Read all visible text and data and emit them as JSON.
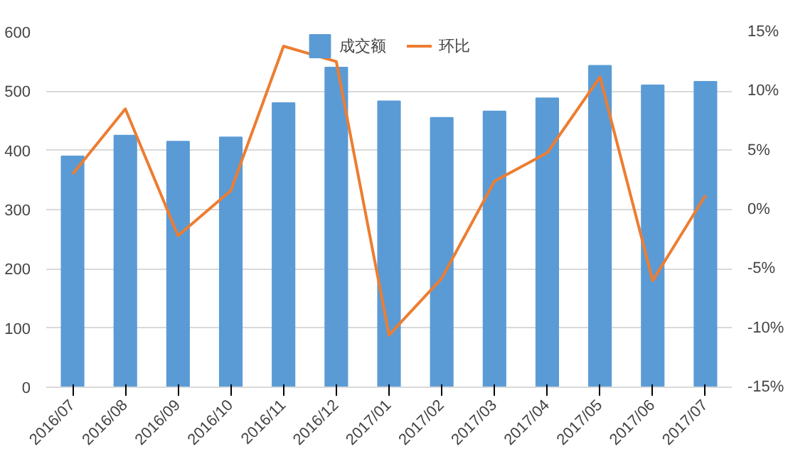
{
  "chart_data": {
    "type": "bar",
    "categories": [
      "2016/07",
      "2016/08",
      "2016/09",
      "2016/10",
      "2016/11",
      "2016/12",
      "2017/01",
      "2017/02",
      "2017/03",
      "2017/04",
      "2017/05",
      "2017/06",
      "2017/07"
    ],
    "series": [
      {
        "name": "成交额",
        "color": "#5b9bd5",
        "values": [
          390,
          425,
          415,
          422,
          480,
          540,
          483,
          455,
          466,
          488,
          543,
          510,
          516
        ]
      },
      {
        "name": "环比",
        "type": "line",
        "axis": "y2",
        "color": "#ed7d31",
        "values": [
          3.0,
          8.5,
          -2.2,
          1.6,
          13.8,
          12.5,
          -10.6,
          -5.8,
          2.4,
          4.8,
          11.2,
          -6.0,
          1.2
        ]
      }
    ],
    "ylim": [
      0,
      600
    ],
    "yticks": [
      0,
      100,
      200,
      300,
      400,
      500,
      600
    ],
    "y2lim": [
      -15,
      15
    ],
    "y2ticks": [
      {
        "value": -15,
        "label": "-15%"
      },
      {
        "value": -10,
        "label": "-10%"
      },
      {
        "value": -5,
        "label": "-5%"
      },
      {
        "value": 0,
        "label": "0%"
      },
      {
        "value": 5,
        "label": "5%"
      },
      {
        "value": 10,
        "label": "10%"
      },
      {
        "value": 15,
        "label": "15%"
      }
    ],
    "grid": "y",
    "legend": "top",
    "marker": "none",
    "line_style": "solid"
  }
}
